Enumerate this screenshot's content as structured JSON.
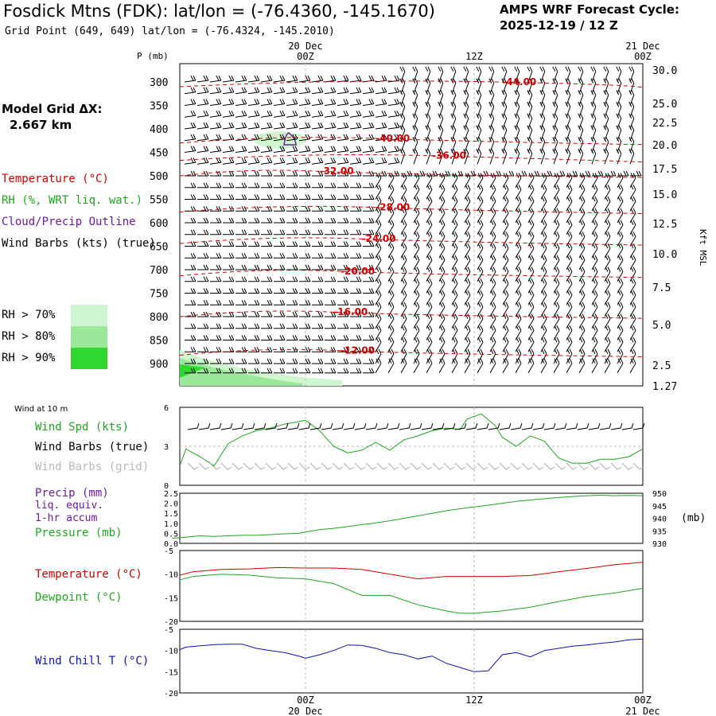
{
  "header": {
    "title": "Fosdick Mtns (FDK):  lat/lon = (-76.4360, -145.1670)",
    "grid_point": "Grid Point (649, 649) lat/lon = (-76.4324, -145.2010)",
    "cycle_line1": "AMPS WRF Forecast Cycle:",
    "cycle_line2": "2025-12-19 / 12  Z"
  },
  "model_grid": {
    "line1": "Model Grid ΔX:",
    "line2": "2.667 km"
  },
  "upper_legend": {
    "temperature": "Temperature (°C)",
    "rh": "RH (%, WRT liq. wat.)",
    "cloud": "Cloud/Precip Outline",
    "wind_barbs": "Wind Barbs (kts) (true)"
  },
  "rh_thresholds": [
    {
      "label": "RH > 70%",
      "color": "#cff7cf"
    },
    {
      "label": "RH > 80%",
      "color": "#9be89b"
    },
    {
      "label": "RH > 90%",
      "color": "#2fd82f"
    }
  ],
  "panel_legends": {
    "wind_at_10m": "Wind at 10 m",
    "wind_spd": "Wind Spd (kts)",
    "wind_barbs_true": "Wind Barbs (true)",
    "wind_barbs_grid": "Wind Barbs (grid)",
    "precip1": "Precip (mm)",
    "precip2": "liq. equiv.",
    "precip3": "1-hr accum",
    "pressure": "Pressure (mb)",
    "temperature": "Temperature (°C)",
    "dewpoint": "Dewpoint (°C)",
    "wind_chill": "Wind Chill T (°C)"
  },
  "colors": {
    "temperature": "#d00000",
    "rh_green": "#1fa51f",
    "cloud": "#6a1b9a",
    "wind_chill": "#1010b0",
    "grid_barb": "#aaaaaa"
  },
  "time_axis": {
    "hours": [
      0,
      36
    ],
    "ticks": [
      {
        "h": 0,
        "top": "00Z",
        "date": "20 Dec"
      },
      {
        "h": 12,
        "top": "12Z",
        "date": ""
      },
      {
        "h": 24,
        "top": "00Z",
        "date": "21 Dec"
      }
    ]
  },
  "chart_data": [
    {
      "type": "area",
      "panel": "vertical cross-section",
      "ylabel_left": "P (mb)",
      "ylabel_right": "Kft MSL",
      "pressure_ticks": [
        300,
        350,
        400,
        450,
        500,
        550,
        600,
        650,
        700,
        750,
        800,
        850,
        900
      ],
      "height_ticks_kft": [
        "30.0",
        "25.0",
        "22.5",
        "20.0",
        "17.5",
        "15.0",
        "12.5",
        "10.0",
        "7.5",
        "5.0",
        "2.5",
        "1.27"
      ],
      "temperature_contours": [
        {
          "label": "-44.00",
          "at": [
            14,
            300
          ]
        },
        {
          "label": "-40.00",
          "at": [
            5,
            420
          ]
        },
        {
          "label": "-36.00",
          "at": [
            9,
            457
          ]
        },
        {
          "label": "-32.00",
          "at": [
            1,
            490
          ]
        },
        {
          "label": "-28.00",
          "at": [
            5,
            567
          ]
        },
        {
          "label": "-24.00",
          "at": [
            4,
            634
          ]
        },
        {
          "label": "-20.00",
          "at": [
            2.5,
            703
          ]
        },
        {
          "label": "-16.00",
          "at": [
            2,
            790
          ]
        },
        {
          "label": "-12.00",
          "at": [
            2.5,
            872
          ]
        }
      ]
    },
    {
      "type": "line",
      "panel": "wind at 10 m",
      "yticks": [
        "6",
        "3",
        "0"
      ],
      "ylim": [
        0,
        6
      ],
      "series": [
        {
          "name": "Wind Spd (kts)",
          "x": [
            -9.5,
            -8.5,
            -7.5,
            -6.5,
            -5.5,
            -4.5,
            -3.5,
            -2.5,
            -1.5,
            -0.5,
            0,
            1,
            2,
            3,
            4,
            5,
            6,
            7,
            8,
            9,
            10,
            11,
            11.5,
            12.5,
            13.5,
            14,
            15,
            16,
            17,
            18,
            19,
            20,
            21,
            22,
            23,
            24
          ],
          "values": [
            1.5,
            2.8,
            2.2,
            1.5,
            3.2,
            3.8,
            4.2,
            4.4,
            4.7,
            4.9,
            5.0,
            4.2,
            3.0,
            2.5,
            2.7,
            3.3,
            2.7,
            3.5,
            3.8,
            4.2,
            4.4,
            4.3,
            5.1,
            5.5,
            4.6,
            3.7,
            3.0,
            3.8,
            3.4,
            2.1,
            1.7,
            1.7,
            2.0,
            2.0,
            2.2,
            2.8
          ]
        }
      ]
    },
    {
      "type": "line",
      "panel": "precip and pressure",
      "yticks_left": [
        "2.5",
        "2.0",
        "1.5",
        "1.0",
        "0.5",
        "0.0"
      ],
      "yticks_right": [
        "950",
        "945",
        "940",
        "935",
        "930"
      ],
      "unit_right": "(mb)",
      "ylim_left": [
        0,
        2.5
      ],
      "ylim_right": [
        930,
        950
      ],
      "series": [
        {
          "name": "Pressure (mb)",
          "x": [
            -9.5,
            -8.5,
            -7.5,
            -6.5,
            -5.5,
            -4.5,
            -3.5,
            -2.5,
            -1.5,
            -0.5,
            0,
            1,
            2,
            3,
            4,
            5,
            6,
            7,
            8,
            9,
            10,
            11,
            12,
            13,
            14,
            15,
            16,
            17,
            18,
            19,
            20,
            21,
            22,
            23,
            24
          ],
          "values": [
            932.0,
            932.5,
            933.0,
            932.8,
            933.0,
            933.2,
            933.2,
            933.5,
            933.8,
            934.0,
            934.5,
            935.5,
            936.0,
            936.7,
            937.5,
            938.2,
            939.0,
            940.0,
            941.0,
            942.0,
            943.0,
            943.8,
            944.5,
            945.2,
            946.0,
            946.8,
            947.3,
            947.8,
            948.3,
            948.7,
            949.0,
            949.2,
            949.0,
            949.1,
            949.0
          ]
        }
      ]
    },
    {
      "type": "line",
      "panel": "temperature and dewpoint",
      "yticks": [
        "-5",
        "-10",
        "-15",
        "-20"
      ],
      "ylim": [
        -20,
        -5
      ],
      "series": [
        {
          "name": "Temperature (°C)",
          "x": [
            -9.5,
            -8,
            -6,
            -4,
            -2,
            0,
            2,
            4,
            6,
            8,
            10,
            12,
            14,
            16,
            18,
            20,
            22,
            24
          ],
          "values": [
            -10.2,
            -9.5,
            -9.0,
            -8.9,
            -8.6,
            -8.7,
            -8.7,
            -9.0,
            -10.0,
            -11.0,
            -10.5,
            -10.5,
            -10.5,
            -10.3,
            -9.5,
            -8.8,
            -8.0,
            -7.5
          ]
        },
        {
          "name": "Dewpoint (°C)",
          "x": [
            -9.5,
            -8,
            -6,
            -4,
            -2,
            0,
            2,
            4,
            6,
            8,
            10,
            11,
            12,
            14,
            16,
            18,
            20,
            22,
            24
          ],
          "values": [
            -11.2,
            -10.5,
            -10.0,
            -10.2,
            -10.8,
            -11.0,
            -12.0,
            -14.5,
            -14.5,
            -16.5,
            -17.8,
            -18.3,
            -18.3,
            -17.8,
            -17.0,
            -15.8,
            -14.7,
            -14.0,
            -13.0
          ]
        }
      ]
    },
    {
      "type": "line",
      "panel": "wind chill",
      "yticks": [
        "-5",
        "-10",
        "-15",
        "-20"
      ],
      "ylim": [
        -20,
        -5
      ],
      "series": [
        {
          "name": "Wind Chill T (°C)",
          "x": [
            -9.5,
            -8.5,
            -7.5,
            -6.5,
            -5.5,
            -4.5,
            -3.5,
            -2.5,
            -1.5,
            -0.5,
            0,
            1,
            2,
            3,
            4,
            5,
            6,
            7,
            8,
            9,
            10,
            11,
            12,
            13,
            14,
            15,
            16,
            17,
            18,
            19,
            20,
            21,
            22,
            23,
            24
          ],
          "values": [
            -9.8,
            -9.2,
            -8.9,
            -8.6,
            -8.5,
            -8.5,
            -9.5,
            -10.0,
            -10.5,
            -11.3,
            -11.8,
            -11.0,
            -10.0,
            -8.7,
            -8.8,
            -9.5,
            -10.5,
            -11.0,
            -12.0,
            -11.3,
            -13.0,
            -14.0,
            -15.0,
            -14.8,
            -11.0,
            -10.5,
            -11.5,
            -10.0,
            -9.5,
            -9.0,
            -8.7,
            -8.3,
            -8.0,
            -7.5,
            -7.3
          ]
        }
      ]
    }
  ]
}
